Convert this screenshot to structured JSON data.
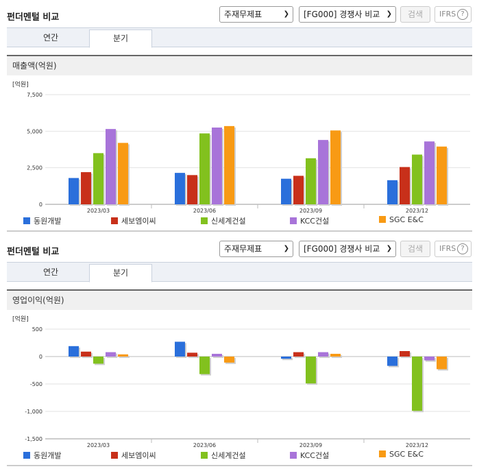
{
  "panels": [
    {
      "title": "펀더멘털 비교",
      "select1": "주재무제표",
      "select2": "[FG000] 경쟁사 비교",
      "search_label": "검색",
      "ifrs_label": "IFRS",
      "ifrs_help": "?",
      "tabs": [
        "연간",
        "분기"
      ],
      "active_tab": 1,
      "metric_label": "매출액(억원)"
    },
    {
      "title": "펀더멘털 비교",
      "select1": "주재무제표",
      "select2": "[FG000] 경쟁사 비교",
      "search_label": "검색",
      "ifrs_label": "IFRS",
      "ifrs_help": "?",
      "tabs": [
        "연간",
        "분기"
      ],
      "active_tab": 1,
      "metric_label": "영업이익(억원)"
    }
  ],
  "colors": {
    "동원개발": "#2a6fdb",
    "세보엠이씨": "#c8301a",
    "신세계건설": "#82c11e",
    "KCC건설": "#a874d9",
    "SGC E&C": "#f89a14"
  },
  "chart_data": [
    {
      "type": "bar",
      "unit": "[억원]",
      "categories": [
        "2023/03",
        "2023/06",
        "2023/09",
        "2023/12"
      ],
      "ylim": [
        0,
        7500
      ],
      "yticks": [
        0,
        2500,
        5000,
        7500
      ],
      "ytick_labels": [
        "0",
        "2,500",
        "5,000",
        "7,500"
      ],
      "series": [
        {
          "name": "동원개발",
          "values": [
            1800,
            2150,
            1750,
            1650
          ]
        },
        {
          "name": "세보엠이씨",
          "values": [
            2200,
            2000,
            1950,
            2550
          ]
        },
        {
          "name": "신세계건설",
          "values": [
            3500,
            4850,
            3150,
            3400
          ]
        },
        {
          "name": "KCC건설",
          "values": [
            5150,
            5250,
            4400,
            4300
          ]
        },
        {
          "name": "SGC E&C",
          "values": [
            4200,
            5350,
            5050,
            3950
          ]
        }
      ]
    },
    {
      "type": "bar",
      "unit": "[억원]",
      "categories": [
        "2023/03",
        "2023/06",
        "2023/09",
        "2023/12"
      ],
      "ylim": [
        -1500,
        500
      ],
      "yticks": [
        -1500,
        -1000,
        -500,
        0,
        500
      ],
      "ytick_labels": [
        "-1,500",
        "-1,000",
        "-500",
        "0",
        "500"
      ],
      "series": [
        {
          "name": "동원개발",
          "values": [
            190,
            270,
            -40,
            -170
          ]
        },
        {
          "name": "세보엠이씨",
          "values": [
            90,
            70,
            80,
            100
          ]
        },
        {
          "name": "신세계건설",
          "values": [
            -130,
            -320,
            -490,
            -990
          ]
        },
        {
          "name": "KCC건설",
          "values": [
            80,
            50,
            80,
            -70
          ]
        },
        {
          "name": "SGC E&C",
          "values": [
            40,
            -110,
            50,
            -230
          ]
        }
      ]
    }
  ]
}
